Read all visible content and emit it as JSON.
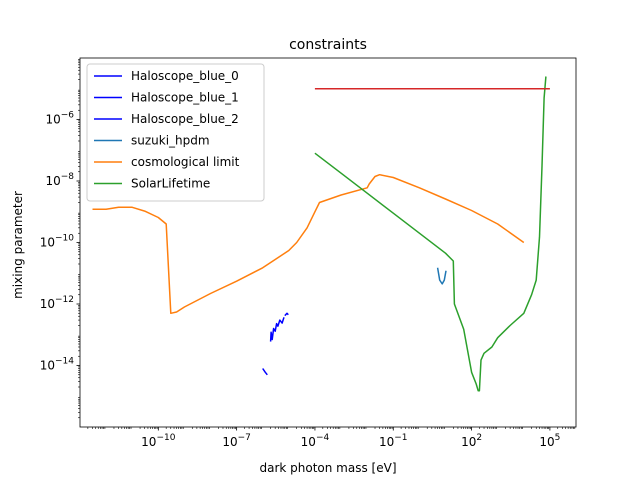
{
  "chart_data": {
    "type": "line",
    "title": "constraints",
    "xlabel": "dark photon mass [eV]",
    "ylabel": "mixing parameter",
    "xscale": "log",
    "yscale": "log",
    "xlim": [
      1e-13,
      1000000.0
    ],
    "ylim": [
      1e-16,
      0.0001
    ],
    "xticks": [
      {
        "value": 1e-10,
        "base": "10",
        "exp": "−10"
      },
      {
        "value": 1e-07,
        "base": "10",
        "exp": "−7"
      },
      {
        "value": 0.0001,
        "base": "10",
        "exp": "−4"
      },
      {
        "value": 0.1,
        "base": "10",
        "exp": "−1"
      },
      {
        "value": 100.0,
        "base": "10",
        "exp": "2"
      },
      {
        "value": 100000.0,
        "base": "10",
        "exp": "5"
      }
    ],
    "yticks": [
      {
        "value": 1e-14,
        "base": "10",
        "exp": "−14"
      },
      {
        "value": 1e-12,
        "base": "10",
        "exp": "−12"
      },
      {
        "value": 1e-10,
        "base": "10",
        "exp": "−10"
      },
      {
        "value": 1e-08,
        "base": "10",
        "exp": "−8"
      },
      {
        "value": 1e-06,
        "base": "10",
        "exp": "−6"
      }
    ],
    "grid": false,
    "legend_position": "upper-left",
    "series": [
      {
        "name": "Haloscope_blue_0",
        "color": "#0000ff",
        "points": [
          [
            1e-06,
            8e-15
          ],
          [
            1.25e-06,
            6e-15
          ],
          [
            1.5e-06,
            5e-15
          ]
        ]
      },
      {
        "name": "Haloscope_blue_1",
        "color": "#0000ff",
        "points": [
          [
            2e-06,
            6e-14
          ],
          [
            2.1e-06,
            1.2e-13
          ],
          [
            2.3e-06,
            7e-14
          ],
          [
            2.6e-06,
            1.6e-13
          ],
          [
            3e-06,
            1.3e-13
          ],
          [
            3.4e-06,
            2.3e-13
          ],
          [
            3.8e-06,
            1.9e-13
          ],
          [
            4.5e-06,
            3e-13
          ],
          [
            5.5e-06,
            2.4e-13
          ],
          [
            6.5e-06,
            3.7e-13
          ]
        ]
      },
      {
        "name": "Haloscope_blue_2",
        "color": "#0000ff",
        "points": [
          [
            7e-06,
            4.2e-13
          ],
          [
            8.5e-06,
            5e-13
          ],
          [
            9.5e-06,
            4.5e-13
          ]
        ]
      },
      {
        "name": "suzuki_hpdm",
        "color": "#1f77b4",
        "points": [
          [
            5.0,
            1.5e-11
          ],
          [
            6.0,
            6e-12
          ],
          [
            7.5,
            4.5e-12
          ],
          [
            9.0,
            6e-12
          ],
          [
            10.5,
            1.2e-11
          ]
        ]
      },
      {
        "name": "cosmological limit",
        "color": "#ff7f0e",
        "points": [
          [
            3e-13,
            1.2e-09
          ],
          [
            1e-12,
            1.2e-09
          ],
          [
            3e-12,
            1.4e-09
          ],
          [
            1e-11,
            1.4e-09
          ],
          [
            3e-11,
            1.05e-09
          ],
          [
            1e-10,
            6.5e-10
          ],
          [
            2e-10,
            4e-10
          ],
          [
            3e-10,
            5e-13
          ],
          [
            5e-10,
            5.5e-13
          ],
          [
            1e-09,
            8e-13
          ],
          [
            1e-08,
            2.2e-12
          ],
          [
            1e-07,
            5.5e-12
          ],
          [
            1e-06,
            1.5e-11
          ],
          [
            1e-05,
            5.5e-11
          ],
          [
            2e-05,
            1e-10
          ],
          [
            5e-05,
            3e-10
          ],
          [
            0.0001,
            1e-09
          ],
          [
            0.00015,
            2e-09
          ],
          [
            0.001,
            3.5e-09
          ],
          [
            0.01,
            6e-09
          ],
          [
            0.012,
            8e-09
          ],
          [
            0.02,
            1.4e-08
          ],
          [
            0.03,
            1.6e-08
          ],
          [
            0.1,
            1.3e-08
          ],
          [
            1,
            6e-09
          ],
          [
            10,
            2.6e-09
          ],
          [
            100,
            1.1e-09
          ],
          [
            1000.0,
            4e-10
          ],
          [
            10000.0,
            1e-10
          ]
        ]
      },
      {
        "name": "SolarLifetime",
        "color": "#2ca02c",
        "points": [
          [
            0.0001,
            8e-08
          ],
          [
            0.001,
            1.8e-08
          ],
          [
            0.01,
            4e-09
          ],
          [
            0.1,
            9e-10
          ],
          [
            1,
            2e-10
          ],
          [
            10,
            4.5e-11
          ],
          [
            20,
            2.5e-11
          ],
          [
            22,
            1e-12
          ],
          [
            50,
            1.5e-13
          ],
          [
            100,
            6e-15
          ],
          [
            150,
            2.5e-15
          ],
          [
            180,
            1.5e-15
          ],
          [
            200,
            1.5e-15
          ],
          [
            230,
            1.5e-14
          ],
          [
            300,
            2.5e-14
          ],
          [
            600,
            4e-14
          ],
          [
            1000.0,
            8e-14
          ],
          [
            3000.0,
            2e-13
          ],
          [
            10000.0,
            5e-13
          ],
          [
            20000.0,
            2e-12
          ],
          [
            30000.0,
            6e-12
          ],
          [
            40000.0,
            1.5e-10
          ],
          [
            50000.0,
            3e-08
          ],
          [
            60000.0,
            5e-06
          ],
          [
            70000.0,
            2.5e-05
          ]
        ]
      },
      {
        "name": "",
        "color": "#d62728",
        "points": [
          [
            0.0001,
            1e-05
          ],
          [
            100000.0,
            1e-05
          ]
        ]
      }
    ]
  }
}
